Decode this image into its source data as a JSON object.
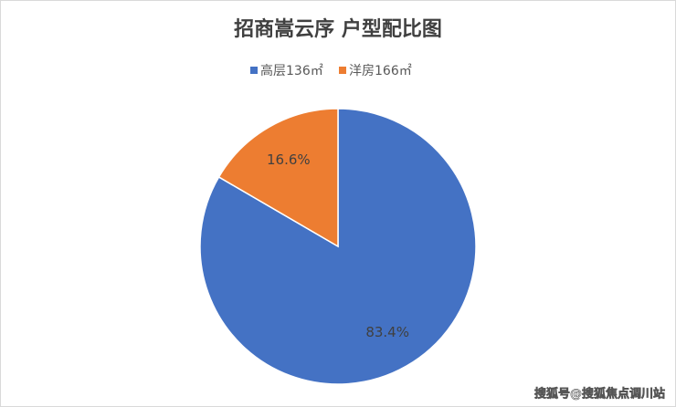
{
  "chart_data": {
    "type": "pie",
    "title": "招商嵩云序 户型配比图",
    "categories": [
      "高层136㎡",
      "洋房166㎡"
    ],
    "values": [
      83.4,
      16.6
    ],
    "value_labels": [
      "83.4%",
      "16.6%"
    ],
    "colors": [
      "#4472c4",
      "#ed7d31"
    ],
    "legend": "top",
    "annotations": [
      "搜狐号@搜狐焦点调川站"
    ]
  }
}
